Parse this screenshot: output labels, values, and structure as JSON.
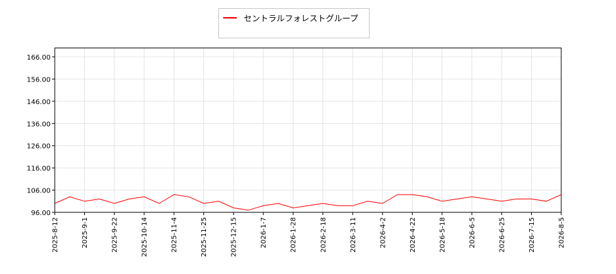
{
  "chart_data": {
    "type": "line",
    "ylim": [
      96,
      170
    ],
    "yticks": [
      "96.00",
      "106.00",
      "116.00",
      "126.00",
      "136.00",
      "146.00",
      "156.00",
      "166.00"
    ],
    "xticks": [
      "2025-8-12",
      "2025-9-1",
      "2025-9-22",
      "2025-10-14",
      "2025-11-4",
      "2025-11-25",
      "2025-12-15",
      "2026-1-7",
      "2026-1-28",
      "2026-2-18",
      "2026-3-11",
      "2026-4-2",
      "2026-4-22",
      "2026-5-18",
      "2026-6-5",
      "2026-6-25",
      "2026-7-15",
      "2026-8-5"
    ],
    "grid": true,
    "legend_position": "top-center",
    "series": [
      {
        "name": "セントラルフォレストグループ",
        "color": "#ff0000",
        "x": [
          0,
          0.5,
          1,
          1.5,
          2,
          2.5,
          3,
          3.5,
          4,
          4.5,
          5,
          5.5,
          6,
          6.5,
          7,
          7.5,
          8,
          8.5,
          9,
          9.5,
          10,
          10.5,
          11,
          11.5,
          12,
          12.5,
          13,
          13.5,
          14,
          14.5,
          15,
          15.5,
          16,
          16.5,
          17
        ],
        "values": [
          100,
          103,
          101,
          102,
          100,
          102,
          103,
          100,
          104,
          103,
          100,
          101,
          98,
          97,
          99,
          100,
          98,
          99,
          100,
          99,
          99,
          101,
          100,
          104,
          104,
          103,
          101,
          102,
          103,
          102,
          101,
          102,
          102,
          101,
          104
        ]
      }
    ]
  }
}
